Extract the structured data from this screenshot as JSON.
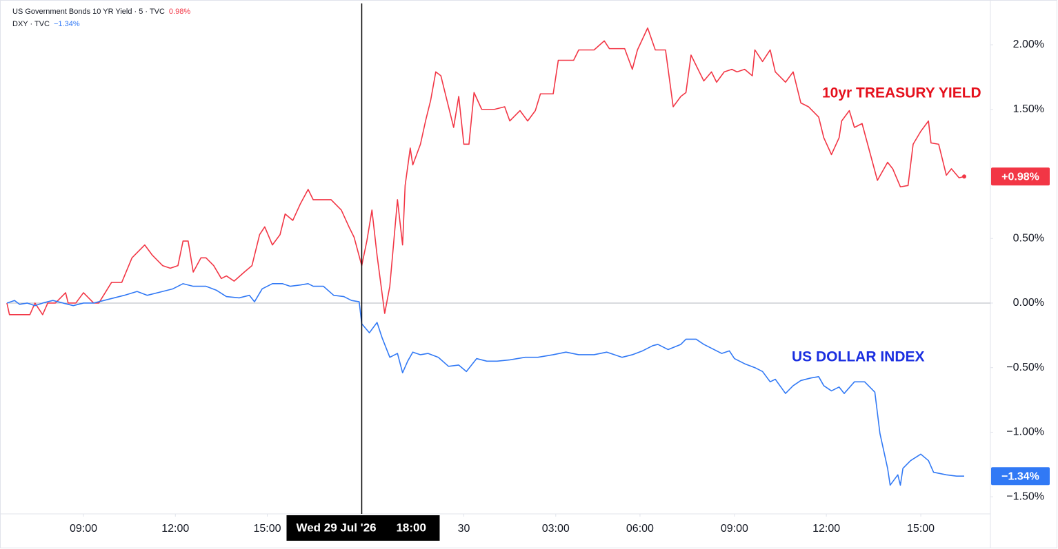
{
  "chart_data": {
    "type": "line",
    "xlim": [
      0,
      385
    ],
    "ylim": [
      -1.627,
      2.32
    ],
    "xticks": [
      {
        "value": 30,
        "label": "09:00"
      },
      {
        "value": 66,
        "label": "12:00"
      },
      {
        "value": 102,
        "label": "15:00"
      },
      {
        "value": 179,
        "label": "30"
      },
      {
        "value": 215,
        "label": "03:00"
      },
      {
        "value": 248,
        "label": "06:00"
      },
      {
        "value": 285,
        "label": "09:00"
      },
      {
        "value": 321,
        "label": "12:00"
      },
      {
        "value": 358,
        "label": "15:00"
      }
    ],
    "yticks": [
      {
        "value": 2,
        "label": "2.00%"
      },
      {
        "value": 1.5,
        "label": "1.50%"
      },
      {
        "value": 0.5,
        "label": "0.50%"
      },
      {
        "value": 0,
        "label": "0.00%"
      },
      {
        "value": -0.5,
        "label": "−0.50%"
      },
      {
        "value": -1,
        "label": "−1.00%"
      },
      {
        "value": -1.5,
        "label": "−1.50%"
      }
    ],
    "crosshair": {
      "x": 139,
      "date": "Wed 29 Jul '26",
      "time": "18:00"
    },
    "annotations": [
      {
        "text": "10yr TREASURY YIELD",
        "color": "#e5101c"
      },
      {
        "text": "US DOLLAR INDEX",
        "color": "#1b2fe0"
      }
    ],
    "series": [
      {
        "name": "US Government Bonds 10 YR Yield · 5 · TVC",
        "color": "#f23645",
        "legend_value": "0.98%",
        "last_label": "+0.98%",
        "x": [
          0,
          1,
          5,
          9,
          11,
          14,
          16,
          19,
          23,
          24,
          27,
          30,
          34,
          36,
          41,
          45,
          49,
          54,
          57,
          61,
          64,
          67,
          69,
          71,
          73,
          76,
          78,
          81,
          84,
          86,
          89,
          93,
          96,
          99,
          101,
          104,
          107,
          109,
          112,
          115,
          118,
          120,
          123,
          127,
          131,
          134,
          136,
          139,
          141,
          143,
          145,
          148,
          150,
          153,
          155,
          156,
          158,
          159,
          162,
          164,
          166,
          168,
          170,
          172,
          175,
          177,
          179,
          181,
          183,
          186,
          191,
          195,
          197,
          201,
          204,
          207,
          209,
          214,
          216,
          222,
          224,
          230,
          234,
          236,
          242,
          245,
          247,
          251,
          254,
          258,
          261,
          264,
          266,
          268,
          270,
          273,
          276,
          278,
          281,
          284,
          286,
          289,
          292,
          293,
          296,
          299,
          301,
          305,
          308,
          311,
          314,
          318,
          320,
          323,
          326,
          327,
          330,
          332,
          335,
          338,
          341,
          345,
          347,
          350,
          353,
          355,
          358,
          361,
          362,
          365,
          368,
          370,
          373,
          375
        ],
        "values": [
          0,
          -0.09,
          -0.09,
          -0.09,
          0,
          -0.09,
          0,
          0,
          0.08,
          0,
          0,
          0.08,
          0,
          0,
          0.16,
          0.16,
          0.35,
          0.45,
          0.37,
          0.29,
          0.27,
          0.29,
          0.48,
          0.48,
          0.24,
          0.35,
          0.35,
          0.29,
          0.19,
          0.21,
          0.17,
          0.24,
          0.29,
          0.53,
          0.59,
          0.45,
          0.53,
          0.69,
          0.64,
          0.77,
          0.88,
          0.8,
          0.8,
          0.8,
          0.72,
          0.59,
          0.51,
          0.29,
          0.48,
          0.72,
          0.37,
          -0.08,
          0.13,
          0.8,
          0.45,
          0.91,
          1.2,
          1.07,
          1.23,
          1.41,
          1.57,
          1.79,
          1.76,
          1.6,
          1.36,
          1.6,
          1.23,
          1.23,
          1.63,
          1.5,
          1.5,
          1.52,
          1.41,
          1.49,
          1.41,
          1.49,
          1.62,
          1.62,
          1.88,
          1.88,
          1.96,
          1.96,
          2.03,
          1.97,
          1.97,
          1.81,
          1.96,
          2.13,
          1.96,
          1.96,
          1.52,
          1.6,
          1.63,
          1.92,
          1.84,
          1.72,
          1.79,
          1.71,
          1.79,
          1.81,
          1.79,
          1.81,
          1.76,
          1.96,
          1.87,
          1.96,
          1.79,
          1.71,
          1.79,
          1.55,
          1.52,
          1.44,
          1.28,
          1.15,
          1.28,
          1.41,
          1.49,
          1.36,
          1.39,
          1.17,
          0.95,
          1.09,
          1.04,
          0.9,
          0.91,
          1.23,
          1.33,
          1.41,
          1.24,
          1.23,
          0.99,
          1.04,
          0.97,
          0.98
        ]
      },
      {
        "name": "DXY · TVC",
        "color": "#3179f5",
        "legend_value": "−1.34%",
        "last_label": "−1.34%",
        "x": [
          0,
          3,
          5,
          8,
          11,
          14,
          18,
          22,
          26,
          30,
          34,
          38,
          42,
          46,
          51,
          55,
          61,
          65,
          69,
          73,
          78,
          82,
          86,
          91,
          95,
          97,
          100,
          104,
          108,
          111,
          115,
          118,
          120,
          124,
          128,
          132,
          135,
          138,
          139,
          142,
          145,
          147,
          150,
          153,
          155,
          157,
          159,
          162,
          165,
          169,
          173,
          177,
          180,
          184,
          188,
          192,
          197,
          203,
          208,
          214,
          219,
          224,
          230,
          235,
          241,
          245,
          249,
          253,
          255,
          259,
          264,
          266,
          270,
          273,
          276,
          280,
          283,
          285,
          289,
          293,
          296,
          299,
          301,
          305,
          308,
          311,
          315,
          318,
          320,
          323,
          326,
          328,
          332,
          336,
          340,
          342,
          345,
          346,
          349,
          350,
          351,
          354,
          358,
          361,
          363,
          368,
          372,
          375
        ],
        "values": [
          0,
          0.02,
          -0.01,
          0,
          -0.02,
          0,
          0.02,
          0,
          -0.02,
          0,
          0,
          0.02,
          0.04,
          0.06,
          0.09,
          0.06,
          0.09,
          0.11,
          0.15,
          0.13,
          0.13,
          0.1,
          0.05,
          0.04,
          0.06,
          0.01,
          0.11,
          0.15,
          0.15,
          0.13,
          0.14,
          0.15,
          0.13,
          0.13,
          0.06,
          0.05,
          0.02,
          0.01,
          -0.16,
          -0.23,
          -0.15,
          -0.27,
          -0.42,
          -0.39,
          -0.54,
          -0.45,
          -0.38,
          -0.4,
          -0.39,
          -0.42,
          -0.49,
          -0.48,
          -0.53,
          -0.43,
          -0.45,
          -0.45,
          -0.44,
          -0.42,
          -0.42,
          -0.4,
          -0.38,
          -0.4,
          -0.4,
          -0.38,
          -0.42,
          -0.4,
          -0.37,
          -0.33,
          -0.32,
          -0.36,
          -0.32,
          -0.28,
          -0.28,
          -0.32,
          -0.35,
          -0.39,
          -0.37,
          -0.43,
          -0.47,
          -0.5,
          -0.53,
          -0.61,
          -0.59,
          -0.7,
          -0.64,
          -0.6,
          -0.58,
          -0.57,
          -0.64,
          -0.68,
          -0.65,
          -0.7,
          -0.61,
          -0.61,
          -0.69,
          -1.01,
          -1.28,
          -1.41,
          -1.33,
          -1.41,
          -1.28,
          -1.22,
          -1.17,
          -1.22,
          -1.31,
          -1.33,
          -1.34,
          -1.34
        ]
      }
    ]
  }
}
